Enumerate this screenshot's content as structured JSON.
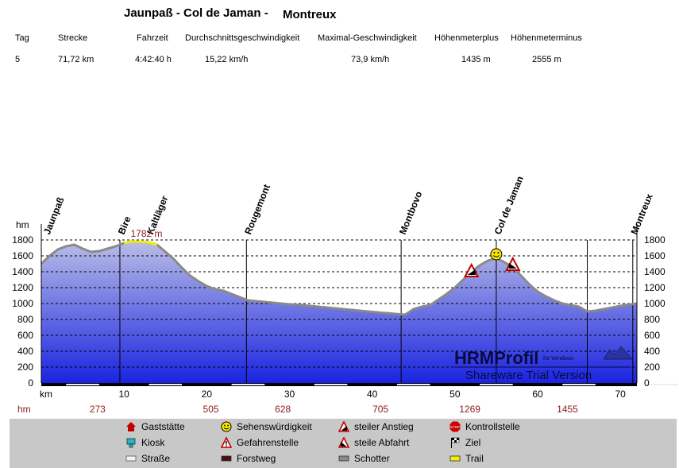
{
  "title": {
    "part1": "Jaunpaß - Col de Jaman -",
    "part2": "Montreux"
  },
  "stats": {
    "headers": [
      "Tag",
      "Strecke",
      "Fahrzeit",
      "Durchschnittsgeschwindigkeit",
      "Maximal-Geschwindigkeit",
      "Höhenmeterplus",
      "Höhenmeterminus"
    ],
    "values": [
      "5",
      "71,72 km",
      "4:42:40 h",
      "15,22 km/h",
      "73,9 km/h",
      "1435 m",
      "2555 m"
    ]
  },
  "chart_data": {
    "type": "area",
    "xlabel": "km",
    "ylabel": "hm",
    "xlim": [
      0,
      72
    ],
    "ylim": [
      0,
      1800
    ],
    "x_ticks": [
      10,
      20,
      30,
      40,
      50,
      60,
      70
    ],
    "y_ticks": [
      0,
      200,
      400,
      600,
      800,
      1000,
      1200,
      1400,
      1600,
      1800
    ],
    "grid": "horizontal dashed",
    "max_label": "1782 m",
    "hm_row": [
      {
        "km": 0,
        "label": "hm"
      },
      {
        "km": 6.8,
        "label": "273"
      },
      {
        "km": 20.5,
        "label": "505"
      },
      {
        "km": 29.2,
        "label": "628"
      },
      {
        "km": 41,
        "label": "705"
      },
      {
        "km": 51.8,
        "label": "1269"
      },
      {
        "km": 63.6,
        "label": "1455"
      }
    ],
    "waypoints": [
      {
        "km": 0.5,
        "name": "Jaunpaß",
        "line": false
      },
      {
        "km": 9.5,
        "name": "Bire",
        "line": true
      },
      {
        "km": 13,
        "name": "Kaltläger",
        "line": false
      },
      {
        "km": 24.8,
        "name": "Rougemont",
        "line": true
      },
      {
        "km": 43.5,
        "name": "Montbovo",
        "line": true
      },
      {
        "km": 55,
        "name": "Col de Jaman",
        "line": true
      },
      {
        "km": 71.5,
        "name": "Montreux",
        "line": true
      }
    ],
    "extra_lines_km": [
      66
    ],
    "profile": [
      [
        0,
        1500
      ],
      [
        1,
        1600
      ],
      [
        2,
        1680
      ],
      [
        3,
        1720
      ],
      [
        4,
        1740
      ],
      [
        5,
        1690
      ],
      [
        6,
        1650
      ],
      [
        7,
        1660
      ],
      [
        8,
        1690
      ],
      [
        9,
        1720
      ],
      [
        10,
        1760
      ],
      [
        11,
        1782
      ],
      [
        12,
        1775
      ],
      [
        13,
        1770
      ],
      [
        14,
        1740
      ],
      [
        15,
        1650
      ],
      [
        16,
        1560
      ],
      [
        17,
        1450
      ],
      [
        18,
        1350
      ],
      [
        19,
        1280
      ],
      [
        20,
        1220
      ],
      [
        21,
        1180
      ],
      [
        22,
        1160
      ],
      [
        23,
        1120
      ],
      [
        24,
        1080
      ],
      [
        25,
        1040
      ],
      [
        26,
        1030
      ],
      [
        27,
        1020
      ],
      [
        28,
        1010
      ],
      [
        29,
        1000
      ],
      [
        30,
        990
      ],
      [
        31,
        985
      ],
      [
        32,
        975
      ],
      [
        33,
        965
      ],
      [
        34,
        955
      ],
      [
        35,
        945
      ],
      [
        36,
        935
      ],
      [
        37,
        925
      ],
      [
        38,
        915
      ],
      [
        39,
        905
      ],
      [
        40,
        895
      ],
      [
        41,
        885
      ],
      [
        42,
        878
      ],
      [
        43,
        868
      ],
      [
        44,
        860
      ],
      [
        45,
        930
      ],
      [
        46,
        960
      ],
      [
        47,
        980
      ],
      [
        48,
        1050
      ],
      [
        49,
        1120
      ],
      [
        50,
        1200
      ],
      [
        51,
        1300
      ],
      [
        52,
        1400
      ],
      [
        53,
        1480
      ],
      [
        54,
        1540
      ],
      [
        55,
        1570
      ],
      [
        56,
        1520
      ],
      [
        57,
        1450
      ],
      [
        58,
        1350
      ],
      [
        59,
        1240
      ],
      [
        60,
        1150
      ],
      [
        61,
        1090
      ],
      [
        62,
        1040
      ],
      [
        63,
        1000
      ],
      [
        64,
        980
      ],
      [
        65,
        960
      ],
      [
        66,
        900
      ],
      [
        67,
        910
      ],
      [
        68,
        930
      ],
      [
        69,
        950
      ],
      [
        70,
        970
      ],
      [
        71,
        985
      ],
      [
        72,
        1000
      ]
    ],
    "trail_segment_km": [
      9.5,
      14.5
    ],
    "markers": [
      {
        "km": 52,
        "elev": 1410,
        "type": "steiler Anstieg"
      },
      {
        "km": 55,
        "elev": 1620,
        "type": "Sehenswürdigkeit"
      },
      {
        "km": 57,
        "elev": 1490,
        "type": "steile Abfahrt"
      }
    ],
    "watermark": {
      "line1": "HRMProfil",
      "small": "für Windows",
      "line2": "Shareware Trial  Version"
    }
  },
  "legend": [
    {
      "icon": "house-icon",
      "label": "Gaststätte"
    },
    {
      "icon": "smiley-icon",
      "label": "Sehenswürdigkeit"
    },
    {
      "icon": "climb-warning-icon",
      "label": "steiler Anstieg"
    },
    {
      "icon": "stop-sign-icon",
      "label": "Kontrollstelle"
    },
    {
      "icon": "kiosk-icon",
      "label": "Kiosk"
    },
    {
      "icon": "warning-icon",
      "label": "Gefahrenstelle"
    },
    {
      "icon": "descent-warning-icon",
      "label": "steile Abfahrt"
    },
    {
      "icon": "checkered-flag-icon",
      "label": "Ziel"
    },
    {
      "icon": "road-swatch",
      "label": "Straße"
    },
    {
      "icon": "forest-road-swatch",
      "label": "Forstweg"
    },
    {
      "icon": "gravel-swatch",
      "label": "Schotter"
    },
    {
      "icon": "trail-swatch",
      "label": "Trail"
    }
  ],
  "colors": {
    "fill_top": "#b9bde6",
    "fill_bottom": "#1a24e0",
    "profile_line": "#8a8a8a",
    "trail": "#f0f000",
    "hm_label": "#8b1a1a"
  }
}
